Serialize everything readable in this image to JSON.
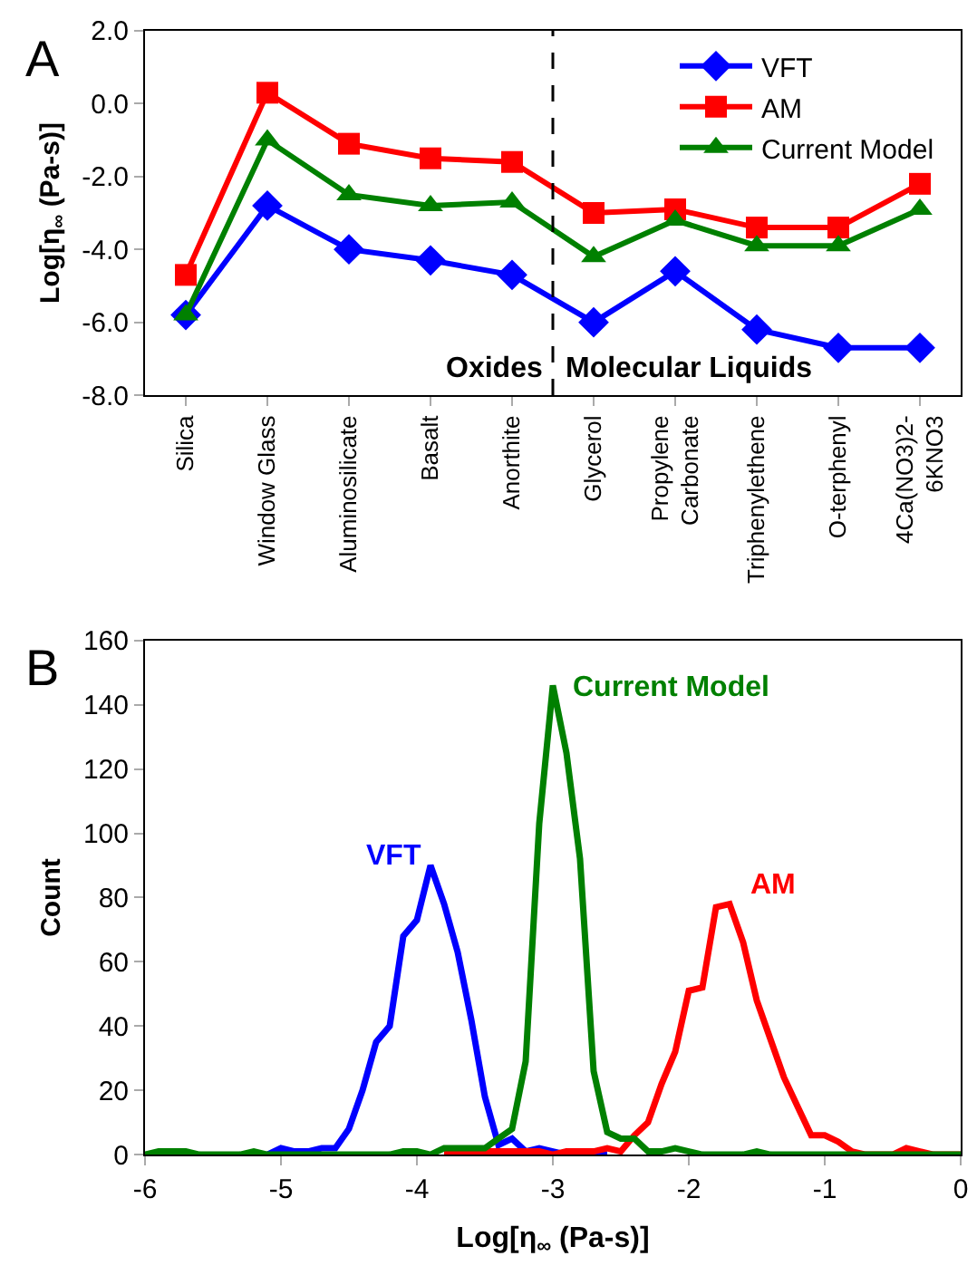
{
  "chart_data": [
    {
      "type": "line",
      "title": "A",
      "ylabel": "Log[η$_{∞}$ (Pa-s)]",
      "categories": [
        "Silica",
        "Window Glass",
        "Aluminosilicate",
        "Basalt",
        "Anorthite",
        "Glycerol",
        "Propylene Carbonate",
        "Triphenylethene",
        "O-terphenyl",
        "4Ca(NO3)2-6KNO3"
      ],
      "series": [
        {
          "name": "VFT",
          "color": "#0000ff",
          "marker": "diamond",
          "values": [
            -5.8,
            -2.8,
            -4.0,
            -4.3,
            -4.7,
            -6.0,
            -4.6,
            -6.2,
            -6.7,
            -6.7
          ]
        },
        {
          "name": "AM",
          "color": "#ff0000",
          "marker": "square",
          "values": [
            -4.7,
            0.3,
            -1.1,
            -1.5,
            -1.6,
            -3.0,
            -2.9,
            -3.4,
            -3.4,
            -2.2
          ]
        },
        {
          "name": "Current Model",
          "color": "#008000",
          "marker": "triangle",
          "values": [
            -5.8,
            -1.0,
            -2.5,
            -2.8,
            -2.7,
            -4.2,
            -3.2,
            -3.9,
            -3.9,
            -2.9
          ]
        }
      ],
      "ylim": [
        -8,
        2
      ],
      "yticks": [
        {
          "value": -8,
          "label": "-8.0"
        },
        {
          "value": -6,
          "label": "-6.0"
        },
        {
          "value": -4,
          "label": "-4.0"
        },
        {
          "value": -2,
          "label": "-2.0"
        },
        {
          "value": 0,
          "label": "0.0"
        },
        {
          "value": 2,
          "label": "2.0"
        }
      ],
      "annotations": [
        "Oxides",
        "Molecular Liquids"
      ],
      "legend": "top right",
      "grid": false,
      "line_style": "solid"
    },
    {
      "type": "line",
      "title": "B",
      "xlabel": "Log[η$_{∞}$ (Pa-s)]",
      "ylabel": "Count",
      "x": [
        -6.0,
        -5.9,
        -5.8,
        -5.7,
        -5.6,
        -5.5,
        -5.4,
        -5.3,
        -5.2,
        -5.1,
        -5.0,
        -4.9,
        -4.8,
        -4.7,
        -4.6,
        -4.5,
        -4.4,
        -4.3,
        -4.2,
        -4.1,
        -4.0,
        -3.9,
        -3.8,
        -3.7,
        -3.6,
        -3.5,
        -3.4,
        -3.3,
        -3.2,
        -3.1,
        -3.0,
        -2.9,
        -2.8,
        -2.7,
        -2.6,
        -2.5,
        -2.4,
        -2.3,
        -2.2,
        -2.1,
        -2.0,
        -1.9,
        -1.8,
        -1.7,
        -1.6,
        -1.5,
        -1.4,
        -1.3,
        -1.2,
        -1.1,
        -1.0,
        -0.9,
        -0.8,
        -0.7,
        -0.6,
        -0.5,
        -0.4,
        -0.3,
        -0.2,
        -0.1,
        0.0
      ],
      "series": [
        {
          "name": "VFT",
          "color": "#0000ff",
          "values": [
            null,
            null,
            null,
            null,
            null,
            null,
            null,
            null,
            null,
            0,
            2,
            1,
            1,
            2,
            2,
            8,
            20,
            35,
            40,
            68,
            73,
            90,
            78,
            63,
            42,
            18,
            3,
            5,
            1,
            2,
            1,
            0,
            0,
            0,
            0,
            null,
            null,
            null,
            null,
            null,
            null,
            null,
            null,
            null,
            null,
            null,
            null,
            null,
            null,
            null,
            null,
            null,
            null,
            null,
            null,
            null,
            null,
            null,
            null,
            null,
            null
          ]
        },
        {
          "name": "AM",
          "color": "#ff0000",
          "values": [
            null,
            null,
            null,
            null,
            null,
            null,
            null,
            null,
            null,
            null,
            null,
            null,
            null,
            null,
            null,
            null,
            null,
            null,
            null,
            null,
            null,
            null,
            1,
            1,
            1,
            1,
            1,
            1,
            1,
            1,
            0,
            1,
            1,
            1,
            2,
            1,
            6,
            10,
            22,
            32,
            51,
            52,
            77,
            78,
            66,
            48,
            36,
            24,
            15,
            6,
            6,
            4,
            1,
            0,
            0,
            0,
            2,
            1,
            0,
            0,
            0
          ]
        },
        {
          "name": "Current Model",
          "color": "#008000",
          "values": [
            0,
            1,
            1,
            1,
            0,
            0,
            0,
            0,
            1,
            0,
            0,
            0,
            0,
            0,
            0,
            0,
            0,
            0,
            0,
            1,
            1,
            0,
            2,
            2,
            2,
            2,
            5,
            8,
            29,
            103,
            146,
            125,
            92,
            26,
            7,
            5,
            5,
            1,
            1,
            2,
            1,
            0,
            0,
            0,
            0,
            1,
            0,
            0,
            0,
            0,
            0,
            0,
            0,
            0,
            0,
            0,
            0,
            0,
            0,
            0,
            0
          ]
        }
      ],
      "xlim": [
        -6,
        0
      ],
      "xticks": [
        -6,
        -5,
        -4,
        -3,
        -2,
        -1,
        0
      ],
      "ylim": [
        0,
        160
      ],
      "yticks": [
        0,
        20,
        40,
        60,
        80,
        100,
        120,
        140,
        160
      ],
      "legend": false,
      "grid": false,
      "marker": "none",
      "line_style": "solid"
    }
  ]
}
